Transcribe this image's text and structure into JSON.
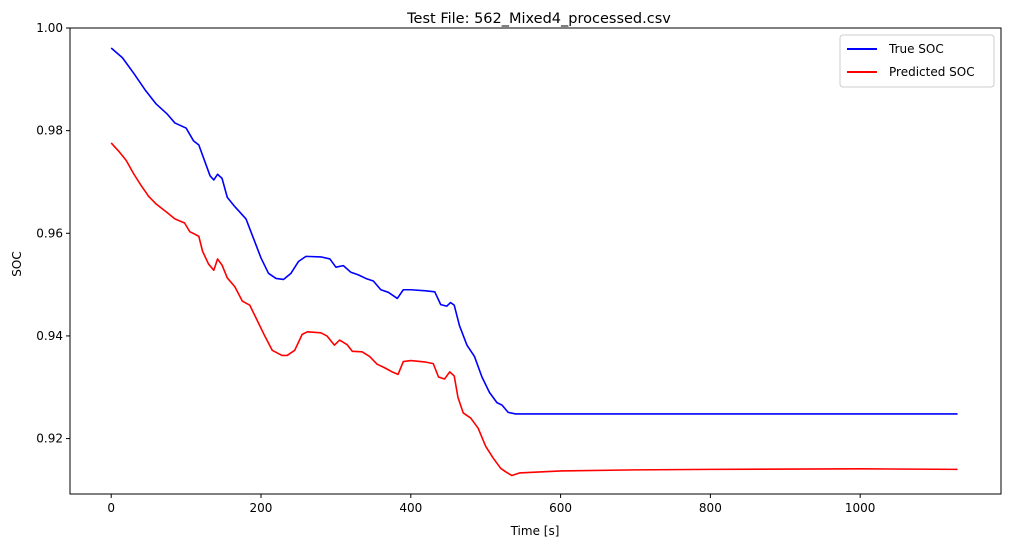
{
  "chart_data": {
    "type": "line",
    "title": "Test File: 562_Mixed4_processed.csv",
    "xlabel": "Time [s]",
    "ylabel": "SOC",
    "xlim": [
      -55,
      1188
    ],
    "ylim": [
      0.9092,
      1.0
    ],
    "xticks": [
      0,
      200,
      400,
      600,
      800,
      1000
    ],
    "xtick_labels": [
      "0",
      "200",
      "400",
      "600",
      "800",
      "1000"
    ],
    "yticks": [
      0.92,
      0.94,
      0.96,
      0.98,
      1.0
    ],
    "ytick_labels": [
      "0.92",
      "0.94",
      "0.96",
      "0.98",
      "1.00"
    ],
    "grid": false,
    "legend_position": "top-right",
    "series": [
      {
        "name": "True SOC",
        "color": "#0000ff",
        "points": [
          [
            0,
            0.9961
          ],
          [
            15,
            0.9942
          ],
          [
            30,
            0.9912
          ],
          [
            45,
            0.988
          ],
          [
            60,
            0.9852
          ],
          [
            75,
            0.9832
          ],
          [
            85,
            0.9815
          ],
          [
            100,
            0.9805
          ],
          [
            110,
            0.978
          ],
          [
            117,
            0.9772
          ],
          [
            125,
            0.974
          ],
          [
            132,
            0.9712
          ],
          [
            137,
            0.9704
          ],
          [
            142,
            0.9715
          ],
          [
            148,
            0.9707
          ],
          [
            155,
            0.967
          ],
          [
            165,
            0.9652
          ],
          [
            180,
            0.9628
          ],
          [
            190,
            0.959
          ],
          [
            200,
            0.9552
          ],
          [
            210,
            0.9522
          ],
          [
            220,
            0.9512
          ],
          [
            230,
            0.951
          ],
          [
            240,
            0.9522
          ],
          [
            250,
            0.9545
          ],
          [
            260,
            0.9555
          ],
          [
            280,
            0.9554
          ],
          [
            292,
            0.955
          ],
          [
            300,
            0.9534
          ],
          [
            310,
            0.9537
          ],
          [
            320,
            0.9524
          ],
          [
            330,
            0.9519
          ],
          [
            340,
            0.9512
          ],
          [
            350,
            0.9507
          ],
          [
            360,
            0.949
          ],
          [
            370,
            0.9485
          ],
          [
            382,
            0.9473
          ],
          [
            390,
            0.949
          ],
          [
            400,
            0.949
          ],
          [
            420,
            0.9488
          ],
          [
            432,
            0.9486
          ],
          [
            440,
            0.9461
          ],
          [
            448,
            0.9458
          ],
          [
            453,
            0.9465
          ],
          [
            458,
            0.946
          ],
          [
            465,
            0.942
          ],
          [
            475,
            0.9382
          ],
          [
            485,
            0.936
          ],
          [
            495,
            0.932
          ],
          [
            505,
            0.929
          ],
          [
            515,
            0.927
          ],
          [
            522,
            0.9265
          ],
          [
            530,
            0.9251
          ],
          [
            540,
            0.9248
          ],
          [
            1130,
            0.9248
          ]
        ]
      },
      {
        "name": "Predicted SOC",
        "color": "#ff0000",
        "points": [
          [
            0,
            0.9776
          ],
          [
            10,
            0.976
          ],
          [
            20,
            0.9742
          ],
          [
            30,
            0.9716
          ],
          [
            40,
            0.9693
          ],
          [
            50,
            0.9672
          ],
          [
            60,
            0.9657
          ],
          [
            75,
            0.964
          ],
          [
            85,
            0.9628
          ],
          [
            98,
            0.962
          ],
          [
            105,
            0.9603
          ],
          [
            112,
            0.9598
          ],
          [
            117,
            0.9594
          ],
          [
            122,
            0.9565
          ],
          [
            130,
            0.954
          ],
          [
            137,
            0.9528
          ],
          [
            142,
            0.955
          ],
          [
            148,
            0.9538
          ],
          [
            155,
            0.9513
          ],
          [
            165,
            0.9496
          ],
          [
            175,
            0.9468
          ],
          [
            185,
            0.946
          ],
          [
            195,
            0.943
          ],
          [
            205,
            0.94
          ],
          [
            215,
            0.9372
          ],
          [
            228,
            0.9362
          ],
          [
            235,
            0.9362
          ],
          [
            245,
            0.9372
          ],
          [
            255,
            0.9403
          ],
          [
            262,
            0.9408
          ],
          [
            280,
            0.9406
          ],
          [
            288,
            0.94
          ],
          [
            298,
            0.9382
          ],
          [
            305,
            0.9392
          ],
          [
            315,
            0.9383
          ],
          [
            322,
            0.937
          ],
          [
            335,
            0.9369
          ],
          [
            345,
            0.936
          ],
          [
            355,
            0.9345
          ],
          [
            365,
            0.9338
          ],
          [
            375,
            0.933
          ],
          [
            383,
            0.9325
          ],
          [
            390,
            0.935
          ],
          [
            400,
            0.9352
          ],
          [
            420,
            0.9349
          ],
          [
            430,
            0.9346
          ],
          [
            437,
            0.932
          ],
          [
            445,
            0.9316
          ],
          [
            452,
            0.933
          ],
          [
            458,
            0.9322
          ],
          [
            463,
            0.928
          ],
          [
            470,
            0.925
          ],
          [
            480,
            0.924
          ],
          [
            490,
            0.922
          ],
          [
            500,
            0.9185
          ],
          [
            510,
            0.9162
          ],
          [
            520,
            0.9142
          ],
          [
            527,
            0.9135
          ],
          [
            535,
            0.9128
          ],
          [
            545,
            0.9133
          ],
          [
            600,
            0.9137
          ],
          [
            700,
            0.9139
          ],
          [
            800,
            0.914
          ],
          [
            1000,
            0.9141
          ],
          [
            1130,
            0.914
          ]
        ]
      }
    ]
  }
}
